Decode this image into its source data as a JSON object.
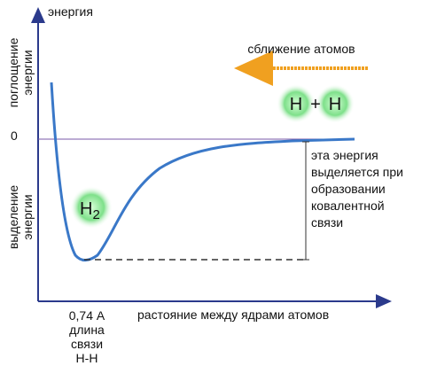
{
  "axis": {
    "y_label": "энергия",
    "zero": "0",
    "absorption": [
      "поглощение",
      "энергии"
    ],
    "release": [
      "выделение",
      "энергии"
    ],
    "x_label": "растояние между ядрами атомов"
  },
  "approach": "сближение атомов",
  "atoms": {
    "left": "H",
    "plus": "+",
    "right": "H"
  },
  "molecule": {
    "symbol": "H",
    "subscript": "2"
  },
  "energy_note": [
    "эта энергия",
    "выделяется при",
    "образовании",
    "ковалентной",
    "связи"
  ],
  "bond_length": [
    "0,74 А",
    "длина",
    "связи",
    "Н-Н"
  ]
}
